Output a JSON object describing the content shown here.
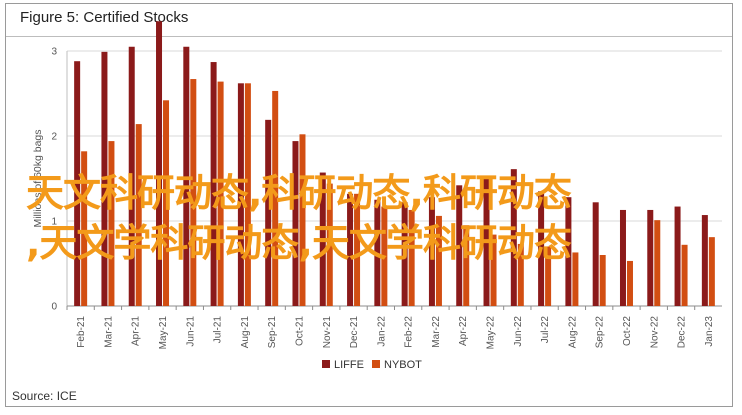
{
  "title": "Figure 5: Certified Stocks",
  "source": "Source: ICE",
  "watermark": {
    "line1": "天文科研动态,科研动态,科研动态",
    "line2": ",天文学科研动态,天文学科研动态"
  },
  "colors": {
    "LIFFE": "#8b1a1a",
    "NYBOT": "#d24e12"
  },
  "chart_data": {
    "type": "bar",
    "ylabel": "Millions of 60kg bags",
    "ylim": [
      0,
      3
    ],
    "yticks": [
      "0",
      "1",
      "2",
      "3"
    ],
    "grid": true,
    "legend_position": "bottom",
    "categories": [
      "Feb-21",
      "Mar-21",
      "Apr-21",
      "May-21",
      "Jun-21",
      "Jul-21",
      "Aug-21",
      "Sep-21",
      "Oct-21",
      "Nov-21",
      "Dec-21",
      "Jan-22",
      "Feb-22",
      "Mar-22",
      "Apr-22",
      "May-22",
      "Jun-22",
      "Jul-22",
      "Aug-22",
      "Sep-22",
      "Oct-22",
      "Nov-22",
      "Dec-22",
      "Jan-23"
    ],
    "series": [
      {
        "name": "LIFFE",
        "values": [
          2.88,
          2.99,
          3.05,
          3.35,
          3.05,
          2.87,
          2.62,
          2.19,
          1.94,
          1.57,
          1.32,
          1.25,
          1.22,
          1.28,
          1.42,
          1.51,
          1.61,
          1.35,
          1.28,
          1.22,
          1.13,
          1.13,
          1.17,
          1.07
        ]
      },
      {
        "name": "NYBOT",
        "values": [
          1.82,
          1.94,
          2.14,
          2.42,
          2.67,
          2.64,
          2.62,
          2.53,
          2.02,
          1.44,
          1.32,
          1.17,
          1.13,
          1.06,
          0.95,
          0.84,
          0.73,
          0.7,
          0.63,
          0.6,
          0.53,
          1.01,
          0.72,
          0.81
        ]
      }
    ]
  }
}
